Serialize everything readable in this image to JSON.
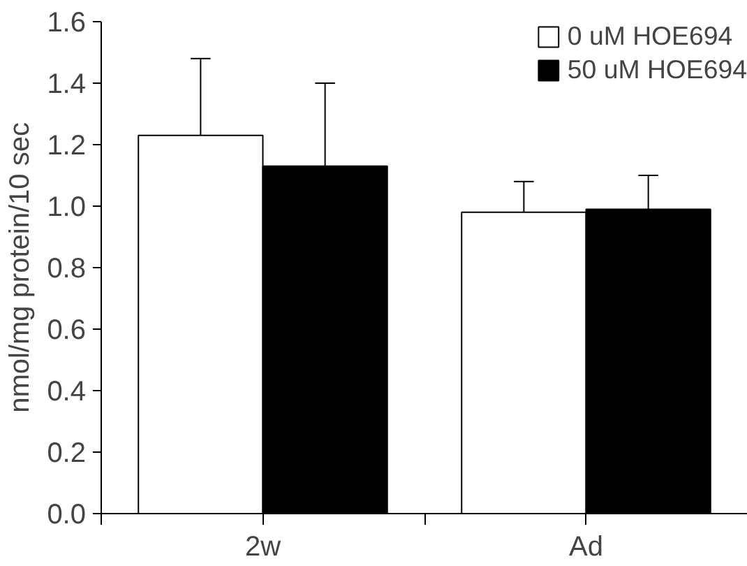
{
  "chart_data": {
    "type": "bar",
    "ylabel": "nmol/mg protein/10 sec",
    "categories": [
      "2w",
      "Ad"
    ],
    "series": [
      {
        "name": "0 uM HOE694",
        "color": "#ffffff",
        "values": [
          1.23,
          0.98
        ],
        "errors": [
          [
            1.23,
            1.48
          ],
          [
            0.98,
            1.08
          ]
        ]
      },
      {
        "name": "50 uM HOE694",
        "color": "#000000",
        "values": [
          1.13,
          0.99
        ],
        "errors": [
          [
            1.13,
            1.4
          ],
          [
            0.99,
            1.1
          ]
        ]
      }
    ],
    "ylim": [
      0,
      1.6
    ],
    "yticks": [
      {
        "value": 0,
        "label": "0.0"
      },
      0.2,
      0.4,
      0.6,
      0.8,
      {
        "value": 1,
        "label": "1.0"
      },
      1.2,
      1.4,
      1.6
    ],
    "grid": false,
    "legend": "top right"
  }
}
